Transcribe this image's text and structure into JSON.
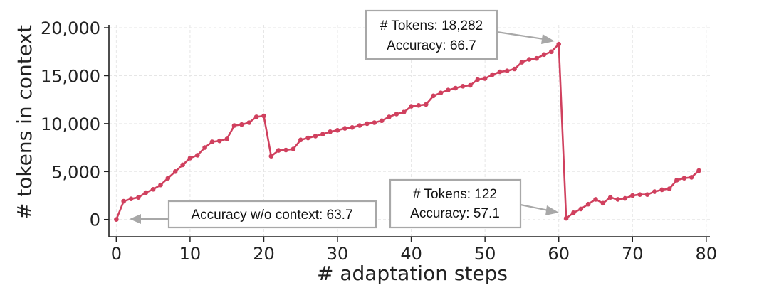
{
  "chart_data": {
    "type": "line",
    "xlabel": "# adaptation steps",
    "ylabel": "# tokens in context",
    "xlim": [
      -1,
      80.5
    ],
    "ylim": [
      -1800,
      20300
    ],
    "xticks": [
      0,
      10,
      20,
      30,
      40,
      50,
      60,
      70,
      80
    ],
    "xtick_labels": [
      "0",
      "10",
      "20",
      "30",
      "40",
      "50",
      "60",
      "70",
      "80"
    ],
    "yticks": [
      0,
      5000,
      10000,
      15000,
      20000
    ],
    "ytick_labels": [
      "0",
      "5,000",
      "10,000",
      "15,000",
      "20,000"
    ],
    "grid": true,
    "series_color": "#d0405e",
    "annotation_color": "#a8a8a8",
    "series": [
      {
        "x": [
          0,
          1,
          2,
          3,
          4,
          5,
          6,
          7,
          8,
          9,
          10,
          11,
          12,
          13,
          14,
          15,
          16,
          17,
          18,
          19,
          20,
          21,
          22,
          23,
          24,
          25,
          26,
          27,
          28,
          29,
          30,
          31,
          32,
          33,
          34,
          35,
          36,
          37,
          38,
          39,
          40,
          41,
          42,
          43,
          44,
          45,
          46,
          47,
          48,
          49,
          50,
          51,
          52,
          53,
          54,
          55,
          56,
          57,
          58,
          59,
          60,
          61,
          62,
          63,
          64,
          65,
          66,
          67,
          68,
          69,
          70,
          71,
          72,
          73,
          74,
          75,
          76,
          77,
          78,
          79
        ],
        "y": [
          0,
          1900,
          2150,
          2300,
          2800,
          3150,
          3600,
          4300,
          5000,
          5700,
          6400,
          6700,
          7500,
          8100,
          8200,
          8400,
          9800,
          9900,
          10100,
          10700,
          10800,
          6600,
          7200,
          7250,
          7350,
          8300,
          8500,
          8700,
          8900,
          9150,
          9300,
          9500,
          9600,
          9800,
          10000,
          10100,
          10300,
          10700,
          11000,
          11200,
          11800,
          11900,
          12000,
          12900,
          13200,
          13500,
          13700,
          13900,
          14000,
          14600,
          14700,
          15100,
          15400,
          15500,
          15700,
          16400,
          16700,
          16800,
          17200,
          17500,
          18282,
          122,
          700,
          1100,
          1600,
          2100,
          1700,
          2300,
          2100,
          2200,
          2500,
          2600,
          2600,
          2900,
          3100,
          3200,
          4100,
          4300,
          4400,
          5100
        ]
      }
    ],
    "annotations": [
      {
        "lines": [
          "# Tokens: 18,282",
          "Accuracy: 66.7"
        ],
        "point": [
          60,
          18282
        ]
      },
      {
        "lines": [
          "# Tokens: 122",
          "Accuracy: 57.1"
        ],
        "point": [
          61,
          122
        ]
      },
      {
        "lines": [
          "Accuracy w/o context: 63.7"
        ],
        "point": [
          0,
          0
        ]
      }
    ]
  }
}
